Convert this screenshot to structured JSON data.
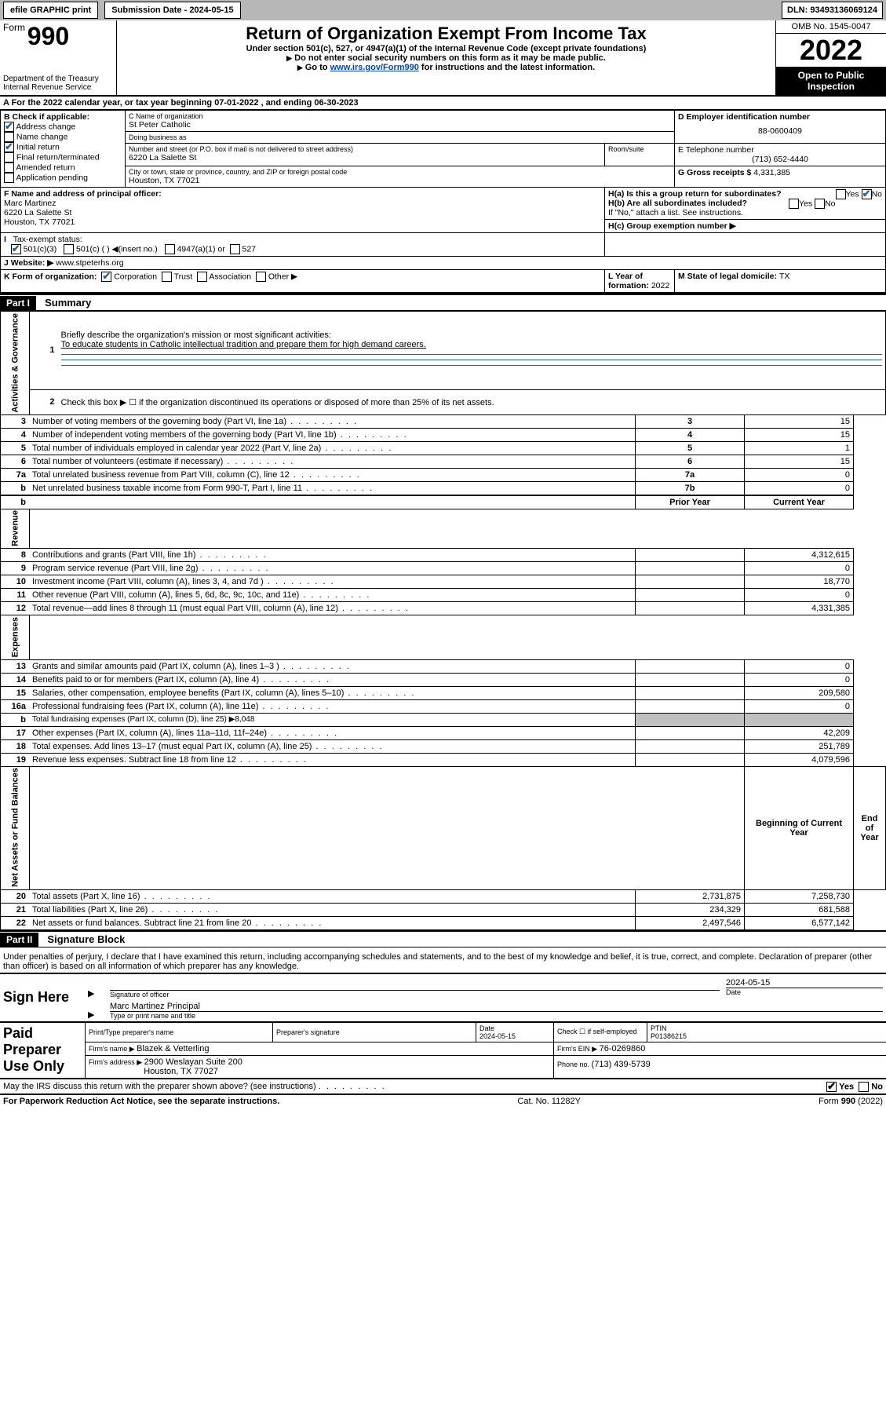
{
  "topbar": {
    "efile": "efile GRAPHIC print",
    "submission_label": "Submission Date - 2024-05-15",
    "dln": "DLN: 93493136069124"
  },
  "header": {
    "form_word": "Form",
    "form_no": "990",
    "dept1": "Department of the Treasury",
    "dept2": "Internal Revenue Service",
    "title": "Return of Organization Exempt From Income Tax",
    "subtitle": "Under section 501(c), 527, or 4947(a)(1) of the Internal Revenue Code (except private foundations)",
    "note1": "Do not enter social security numbers on this form as it may be made public.",
    "note2_pre": "Go to ",
    "note2_link": "www.irs.gov/Form990",
    "note2_post": " for instructions and the latest information.",
    "omb": "OMB No. 1545-0047",
    "year": "2022",
    "open1": "Open to Public",
    "open2": "Inspection"
  },
  "row_a": "A For the 2022 calendar year, or tax year beginning 07-01-2022   , and ending 06-30-2023",
  "boxB": {
    "title": "B Check if applicable:",
    "items": [
      {
        "label": "Address change",
        "checked": true
      },
      {
        "label": "Name change",
        "checked": false
      },
      {
        "label": "Initial return",
        "checked": true
      },
      {
        "label": "Final return/terminated",
        "checked": false
      },
      {
        "label": "Amended return",
        "checked": false
      },
      {
        "label": "Application pending",
        "checked": false
      }
    ]
  },
  "boxC": {
    "name_label": "C Name of organization",
    "name": "St Peter Catholic",
    "dba_label": "Doing business as",
    "dba": "",
    "street_label": "Number and street (or P.O. box if mail is not delivered to street address)",
    "room_label": "Room/suite",
    "street": "6220 La Salette St",
    "city_label": "City or town, state or province, country, and ZIP or foreign postal code",
    "city": "Houston, TX  77021"
  },
  "boxD": {
    "label": "D Employer identification number",
    "val": "88-0600409"
  },
  "boxE": {
    "label": "E Telephone number",
    "val": "(713) 652-4440"
  },
  "boxG": {
    "label": "G Gross receipts $ ",
    "val": "4,331,385"
  },
  "boxF": {
    "label": "F  Name and address of principal officer:",
    "l1": "Marc Martinez",
    "l2": "6220 La Salette St",
    "l3": "Houston, TX  77021"
  },
  "boxH": {
    "a": "H(a)  Is this a group return for subordinates?",
    "b": "H(b)  Are all subordinates included?",
    "note": "If \"No,\" attach a list. See instructions.",
    "c": "H(c)  Group exemption number ▶"
  },
  "boxI": {
    "label": "Tax-exempt status:",
    "o1": "501(c)(3)",
    "o2": "501(c) (   ) ◀(insert no.)",
    "o3": "4947(a)(1) or",
    "o4": "527"
  },
  "boxJ": {
    "label": "J Website: ▶ ",
    "val": "www.stpeterhs.org"
  },
  "boxK": {
    "label": "K Form of organization:",
    "o1": "Corporation",
    "o2": "Trust",
    "o3": "Association",
    "o4": "Other ▶"
  },
  "boxL": {
    "label": "L Year of formation: ",
    "val": "2022"
  },
  "boxM": {
    "label": "M State of legal domicile: ",
    "val": "TX"
  },
  "part1": {
    "hdr": "Part I",
    "title": "Summary"
  },
  "summary": {
    "q1": "Briefly describe the organization's mission or most significant activities:",
    "a1": "To educate students in Catholic intellectual tradition and prepare them for high demand careers.",
    "q2": "Check this box ▶ ☐  if the organization discontinued its operations or disposed of more than 25% of its net assets.",
    "rows_top": [
      {
        "n": "3",
        "d": "Number of voting members of the governing body (Part VI, line 1a)",
        "box": "3",
        "v": "15"
      },
      {
        "n": "4",
        "d": "Number of independent voting members of the governing body (Part VI, line 1b)",
        "box": "4",
        "v": "15"
      },
      {
        "n": "5",
        "d": "Total number of individuals employed in calendar year 2022 (Part V, line 2a)",
        "box": "5",
        "v": "1"
      },
      {
        "n": "6",
        "d": "Total number of volunteers (estimate if necessary)",
        "box": "6",
        "v": "15"
      },
      {
        "n": "7a",
        "d": "Total unrelated business revenue from Part VIII, column (C), line 12",
        "box": "7a",
        "v": "0"
      },
      {
        "n": "b",
        "d": "Net unrelated business taxable income from Form 990-T, Part I, line 11",
        "box": "7b",
        "v": "0"
      }
    ],
    "col_prior": "Prior Year",
    "col_current": "Current Year",
    "revenue": [
      {
        "n": "8",
        "d": "Contributions and grants (Part VIII, line 1h)",
        "p": "",
        "c": "4,312,615"
      },
      {
        "n": "9",
        "d": "Program service revenue (Part VIII, line 2g)",
        "p": "",
        "c": "0"
      },
      {
        "n": "10",
        "d": "Investment income (Part VIII, column (A), lines 3, 4, and 7d )",
        "p": "",
        "c": "18,770"
      },
      {
        "n": "11",
        "d": "Other revenue (Part VIII, column (A), lines 5, 6d, 8c, 9c, 10c, and 11e)",
        "p": "",
        "c": "0"
      },
      {
        "n": "12",
        "d": "Total revenue—add lines 8 through 11 (must equal Part VIII, column (A), line 12)",
        "p": "",
        "c": "4,331,385"
      }
    ],
    "expenses": [
      {
        "n": "13",
        "d": "Grants and similar amounts paid (Part IX, column (A), lines 1–3 )",
        "p": "",
        "c": "0"
      },
      {
        "n": "14",
        "d": "Benefits paid to or for members (Part IX, column (A), line 4)",
        "p": "",
        "c": "0"
      },
      {
        "n": "15",
        "d": "Salaries, other compensation, employee benefits (Part IX, column (A), lines 5–10)",
        "p": "",
        "c": "209,580"
      },
      {
        "n": "16a",
        "d": "Professional fundraising fees (Part IX, column (A), line 11e)",
        "p": "",
        "c": "0"
      },
      {
        "n": "b",
        "d": "Total fundraising expenses (Part IX, column (D), line 25) ▶8,048",
        "p": null,
        "c": null
      },
      {
        "n": "17",
        "d": "Other expenses (Part IX, column (A), lines 11a–11d, 11f–24e)",
        "p": "",
        "c": "42,209"
      },
      {
        "n": "18",
        "d": "Total expenses. Add lines 13–17 (must equal Part IX, column (A), line 25)",
        "p": "",
        "c": "251,789"
      },
      {
        "n": "19",
        "d": "Revenue less expenses. Subtract line 18 from line 12",
        "p": "",
        "c": "4,079,596"
      }
    ],
    "col_begin": "Beginning of Current Year",
    "col_end": "End of Year",
    "netassets": [
      {
        "n": "20",
        "d": "Total assets (Part X, line 16)",
        "p": "2,731,875",
        "c": "7,258,730"
      },
      {
        "n": "21",
        "d": "Total liabilities (Part X, line 26)",
        "p": "234,329",
        "c": "681,588"
      },
      {
        "n": "22",
        "d": "Net assets or fund balances. Subtract line 21 from line 20",
        "p": "2,497,546",
        "c": "6,577,142"
      }
    ],
    "vtab1": "Activities & Governance",
    "vtab2": "Revenue",
    "vtab3": "Expenses",
    "vtab4": "Net Assets or Fund Balances"
  },
  "part2": {
    "hdr": "Part II",
    "title": "Signature Block"
  },
  "sig": {
    "decl": "Under penalties of perjury, I declare that I have examined this return, including accompanying schedules and statements, and to the best of my knowledge and belief, it is true, correct, and complete. Declaration of preparer (other than officer) is based on all information of which preparer has any knowledge.",
    "sign_here": "Sign Here",
    "sig_officer": "Signature of officer",
    "sig_date": "2024-05-15",
    "date_lbl": "Date",
    "name_title": "Marc Martinez Principal",
    "name_title_lbl": "Type or print name and title",
    "paid": "Paid Preparer Use Only",
    "col_print": "Print/Type preparer's name",
    "col_sig": "Preparer's signature",
    "col_date": "Date",
    "col_date_val": "2024-05-15",
    "col_check": "Check ☐ if self-employed",
    "col_ptin": "PTIN",
    "ptin": "P01386215",
    "firm_name_lbl": "Firm's name    ▶ ",
    "firm_name": "Blazek & Vetterling",
    "firm_ein_lbl": "Firm's EIN ▶ ",
    "firm_ein": "76-0269860",
    "firm_addr_lbl": "Firm's address ▶ ",
    "firm_addr1": "2900 Weslayan Suite 200",
    "firm_addr2": "Houston, TX  77027",
    "phone_lbl": "Phone no. ",
    "phone": "(713) 439-5739",
    "discuss": "May the IRS discuss this return with the preparer shown above? (see instructions)",
    "yes": "Yes",
    "no": "No"
  },
  "footer": {
    "l": "For Paperwork Reduction Act Notice, see the separate instructions.",
    "m": "Cat. No. 11282Y",
    "r": "Form 990 (2022)"
  }
}
